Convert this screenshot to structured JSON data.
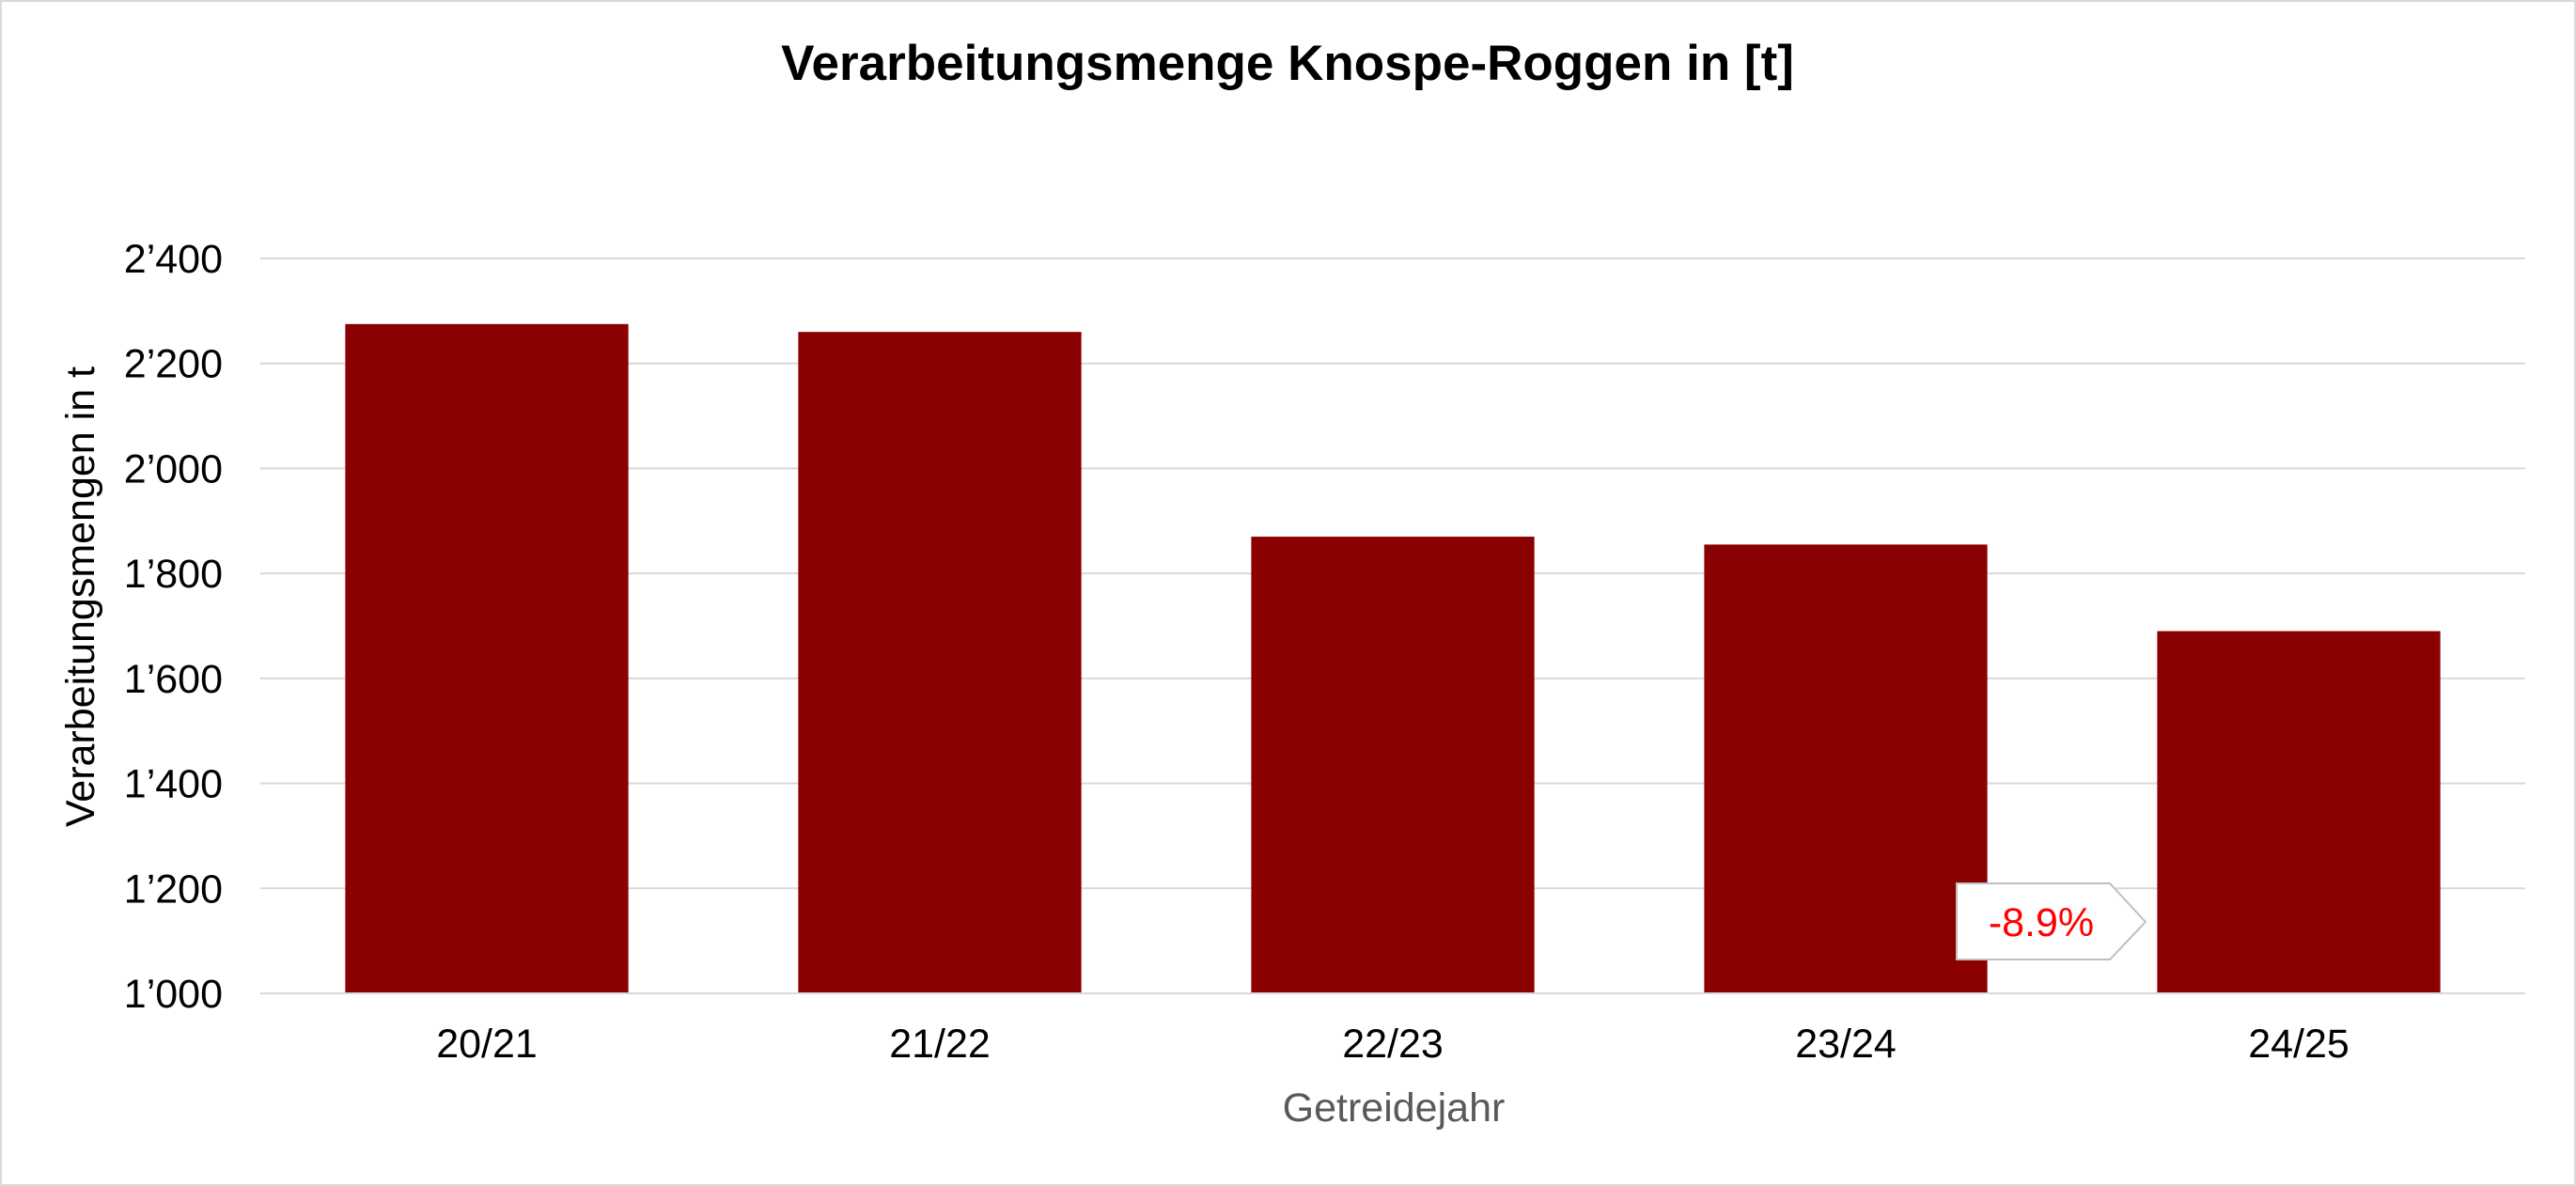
{
  "chart_data": {
    "type": "bar",
    "title": "Verarbeitungsmenge Knospe-Roggen in [t]",
    "xlabel": "Getreidejahr",
    "ylabel": "Verarbeitungsmengen in t",
    "categories": [
      "20/21",
      "21/22",
      "22/23",
      "23/24",
      "24/25"
    ],
    "values": [
      2275,
      2260,
      1870,
      1855,
      1690
    ],
    "ylim": [
      1000,
      2400
    ],
    "yticks": [
      1000,
      1200,
      1400,
      1600,
      1800,
      2000,
      2200,
      2400
    ],
    "ytick_labels": [
      "1’000",
      "1’200",
      "1’400",
      "1’600",
      "1’800",
      "2’000",
      "2’200",
      "2’400"
    ],
    "grid": true,
    "bar_color": "#8b0000",
    "annotation": {
      "text": "-8.9%",
      "color": "#ff0000"
    }
  }
}
